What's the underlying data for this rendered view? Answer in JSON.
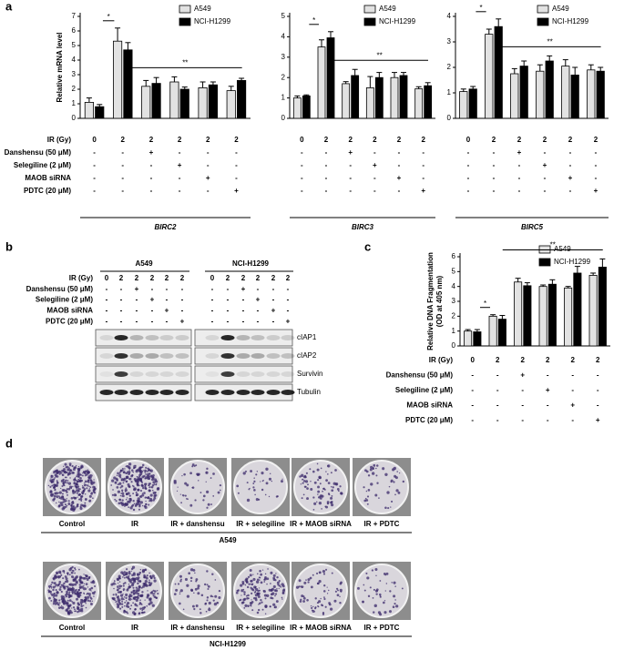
{
  "panel_labels": [
    "a",
    "b",
    "c",
    "d"
  ],
  "treatments": {
    "rows": [
      {
        "label": "IR (Gy)",
        "cells": [
          "0",
          "2",
          "2",
          "2",
          "2",
          "2"
        ]
      },
      {
        "label": "Danshensu (50 μM)",
        "cells": [
          "-",
          "-",
          "+",
          "-",
          "-",
          "-"
        ]
      },
      {
        "label": "Selegiline (2 μM)",
        "cells": [
          "-",
          "-",
          "-",
          "+",
          "-",
          "-"
        ]
      },
      {
        "label": "MAOB siRNA",
        "cells": [
          "-",
          "-",
          "-",
          "-",
          "+",
          "-"
        ]
      },
      {
        "label": "PDTC (20 μM)",
        "cells": [
          "-",
          "-",
          "-",
          "-",
          "-",
          "+"
        ]
      }
    ]
  },
  "chart_data": [
    {
      "type": "bar",
      "xlabel": "BIRC2",
      "ylabel": [
        "Relative mRNA level"
      ],
      "ylim": [
        0,
        7
      ],
      "yticks": [
        0,
        1,
        2,
        3,
        4,
        5,
        6,
        7
      ],
      "legend": "upper right",
      "annotations": [
        "*",
        "**"
      ],
      "series": [
        {
          "name": "A549",
          "color": "#e2e2e2",
          "values": [
            1.1,
            5.3,
            2.2,
            2.5,
            2.1,
            1.9
          ],
          "errors": [
            0.3,
            0.9,
            0.4,
            0.35,
            0.4,
            0.3
          ]
        },
        {
          "name": "NCI-H1299",
          "color": "#000000",
          "values": [
            0.8,
            4.7,
            2.4,
            2.0,
            2.3,
            2.6
          ],
          "errors": [
            0.15,
            0.5,
            0.4,
            0.15,
            0.2,
            0.15
          ]
        }
      ]
    },
    {
      "type": "bar",
      "xlabel": "BIRC3",
      "ylim": [
        0,
        5
      ],
      "yticks": [
        0,
        1,
        2,
        3,
        4,
        5
      ],
      "legend": "upper right",
      "annotations": [
        "*",
        "**"
      ],
      "series": [
        {
          "name": "A549",
          "color": "#e2e2e2",
          "values": [
            1.0,
            3.5,
            1.7,
            1.5,
            2.0,
            1.45
          ],
          "errors": [
            0.1,
            0.35,
            0.1,
            0.55,
            0.25,
            0.1
          ]
        },
        {
          "name": "NCI-H1299",
          "color": "#000000",
          "values": [
            1.1,
            3.95,
            2.1,
            2.0,
            2.1,
            1.6
          ],
          "errors": [
            0.05,
            0.3,
            0.3,
            0.25,
            0.15,
            0.15
          ]
        }
      ]
    },
    {
      "type": "bar",
      "xlabel": "BIRC5",
      "ylim": [
        0,
        4
      ],
      "yticks": [
        0,
        1,
        2,
        3,
        4
      ],
      "legend": "upper right",
      "annotations": [
        "*",
        "**"
      ],
      "series": [
        {
          "name": "A549",
          "color": "#e2e2e2",
          "values": [
            1.05,
            3.3,
            1.75,
            1.85,
            2.05,
            1.9
          ],
          "errors": [
            0.1,
            0.2,
            0.2,
            0.25,
            0.25,
            0.2
          ]
        },
        {
          "name": "NCI-H1299",
          "color": "#000000",
          "values": [
            1.15,
            3.6,
            2.05,
            2.25,
            1.7,
            1.85
          ],
          "errors": [
            0.1,
            0.3,
            0.2,
            0.2,
            0.3,
            0.15
          ]
        }
      ]
    },
    {
      "type": "bar",
      "ylabel": [
        "Relative DNA Fragmentation",
        "(OD at 405 nm)"
      ],
      "ylim": [
        0,
        6
      ],
      "yticks": [
        0,
        1,
        2,
        3,
        4,
        5,
        6
      ],
      "legend": "upper right",
      "annotations": [
        "*",
        "**"
      ],
      "series": [
        {
          "name": "A549",
          "color": "#e2e2e2",
          "values": [
            1.0,
            2.0,
            4.3,
            4.0,
            3.9,
            4.75
          ],
          "errors": [
            0.1,
            0.1,
            0.25,
            0.1,
            0.1,
            0.15
          ]
        },
        {
          "name": "NCI-H1299",
          "color": "#000000",
          "values": [
            0.95,
            1.8,
            4.05,
            4.15,
            4.9,
            5.3
          ],
          "errors": [
            0.15,
            0.25,
            0.2,
            0.3,
            0.45,
            0.55
          ]
        }
      ]
    }
  ],
  "western": {
    "groups": [
      "A549",
      "NCI-H1299"
    ],
    "proteins": [
      "cIAP1",
      "cIAP2",
      "Survivin",
      "Tubulin"
    ]
  },
  "colony": {
    "conditions": [
      "Control",
      "IR",
      "IR + danshensu",
      "IR + selegiline",
      "IR + MAOB siRNA",
      "IR + PDTC"
    ],
    "cell_lines": [
      "A549",
      "NCI-H1299"
    ]
  }
}
